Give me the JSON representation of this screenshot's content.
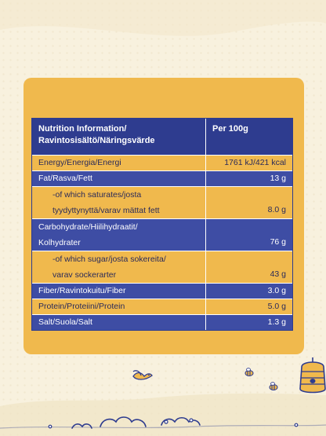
{
  "table": {
    "header": {
      "label_line1": "Nutrition Information/",
      "label_line2": "Ravintosisältö/Näringsvärde",
      "value": "Per 100g"
    },
    "rows": [
      {
        "label": "Energy/Energia/Energi",
        "value": "1761 kJ/421 kcal",
        "style": "yellow"
      },
      {
        "label": "Fat/Rasva/Fett",
        "value": "13 g",
        "style": "blue"
      },
      {
        "label_line1": "-of which saturates/josta",
        "label_line2": "tyydyttynyttä/varav mättat fett",
        "value": "8.0 g",
        "style": "yellow"
      },
      {
        "label_line1": "Carbohydrate/Hiilihydraatit/",
        "label_line2": "Kolhydrater",
        "value": "76 g",
        "style": "blue"
      },
      {
        "label_line1": "-of which sugar/josta sokereita/",
        "label_line2": "varav sockerarter",
        "value": "43 g",
        "style": "yellow"
      },
      {
        "label": "Fiber/Ravintokuitu/Fiber",
        "value": "3.0 g",
        "style": "blue"
      },
      {
        "label": "Protein/Proteiini/Protein",
        "value": "5.0 g",
        "style": "yellow"
      },
      {
        "label": "Salt/Suola/Salt",
        "value": "1.3 g",
        "style": "blue"
      }
    ]
  },
  "colors": {
    "background": "#F8F1DE",
    "card": "#F0B94D",
    "table_blue": "#3E4DA4",
    "border_blue": "#2E3C8F",
    "illustration_stroke": "#2E3C8F"
  },
  "illustration": {
    "icons": [
      "bird-icon",
      "bee-icon",
      "beehive-icon",
      "bush-icon",
      "flower-icon"
    ]
  }
}
